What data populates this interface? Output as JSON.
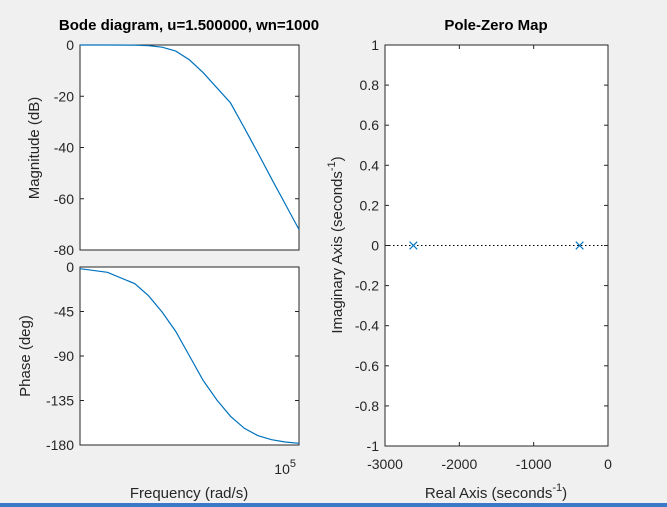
{
  "bode": {
    "title": "Bode diagram, u=1.500000, wn=1000",
    "mag_ylabel": "Magnitude (dB)",
    "phase_ylabel": "Phase (deg)",
    "xlabel": "Frequency  (rad/s)",
    "x_tick_base": "10",
    "x_tick_exp": "5"
  },
  "pz": {
    "title": "Pole-Zero Map",
    "ylabel_main": "Imaginary Axis (seconds",
    "ylabel_exp": "-1",
    "ylabel_close": ")",
    "xlabel_main": "Real Axis (seconds",
    "xlabel_exp": "-1",
    "xlabel_close": ")"
  },
  "chart_data": [
    {
      "type": "line",
      "panel": "bode-magnitude",
      "title": "Bode diagram, u=1.500000, wn=1000",
      "ylabel": "Magnitude (dB)",
      "xscale": "log",
      "xlim": [
        10,
        100000
      ],
      "ylim": [
        -80,
        0
      ],
      "yticks": [
        0,
        -20,
        -40,
        -60,
        -80
      ],
      "ytick_labels": [
        "0",
        "-20",
        "-40",
        "-60",
        "-80"
      ],
      "grid": false,
      "series": [
        {
          "color": "#0072bd",
          "x": [
            10,
            31.6,
            100,
            178,
            316,
            562,
            1000,
            1780,
            3160,
            5620,
            10000,
            17800,
            31600,
            56200,
            100000
          ],
          "y": [
            0,
            -0.01,
            -0.09,
            -0.27,
            -0.85,
            -2.4,
            -5.8,
            -10.8,
            -16.7,
            -22.6,
            -32.3,
            -42.2,
            -52.2,
            -62.1,
            -72
          ]
        }
      ]
    },
    {
      "type": "line",
      "panel": "bode-phase",
      "xlabel": "Frequency  (rad/s)",
      "ylabel": "Phase (deg)",
      "xscale": "log",
      "xlim": [
        10,
        100000
      ],
      "ylim": [
        -180,
        0
      ],
      "yticks": [
        0,
        -45,
        -90,
        -135,
        -180
      ],
      "ytick_labels": [
        "0",
        "-45",
        "-90",
        "-135",
        "-180"
      ],
      "grid": false,
      "series": [
        {
          "color": "#0072bd",
          "x": [
            10,
            31.6,
            100,
            178,
            316,
            562,
            1000,
            1780,
            3160,
            5620,
            10000,
            17800,
            31600,
            56200,
            100000
          ],
          "y": [
            -1.7,
            -5.4,
            -16.9,
            -29,
            -45.5,
            -65.2,
            -90,
            -114.8,
            -134.5,
            -151,
            -163.1,
            -170.6,
            -174.6,
            -177,
            -178.3
          ]
        }
      ]
    },
    {
      "type": "scatter",
      "panel": "pole-zero",
      "title": "Pole-Zero Map",
      "xlabel": "Real Axis (seconds-1)",
      "ylabel": "Imaginary Axis (seconds-1)",
      "xlim": [
        -3000,
        0
      ],
      "ylim": [
        -1,
        1
      ],
      "xticks": [
        -3000,
        -2000,
        -1000,
        0
      ],
      "xtick_labels": [
        "-3000",
        "-2000",
        "-1000",
        "0"
      ],
      "yticks": [
        1,
        0.8,
        0.6,
        0.4,
        0.2,
        0,
        -0.2,
        -0.4,
        -0.6,
        -0.8,
        -1
      ],
      "ytick_labels": [
        "1",
        "0.8",
        "0.6",
        "0.4",
        "0.2",
        "0",
        "-0.2",
        "-0.4",
        "-0.6",
        "-0.8",
        "-1"
      ],
      "zero_line": "dotted",
      "grid": false,
      "series": [
        {
          "marker": "x",
          "color": "#0072bd",
          "points": [
            {
              "x": -2618,
              "y": 0
            },
            {
              "x": -382,
              "y": 0
            }
          ]
        }
      ]
    }
  ]
}
